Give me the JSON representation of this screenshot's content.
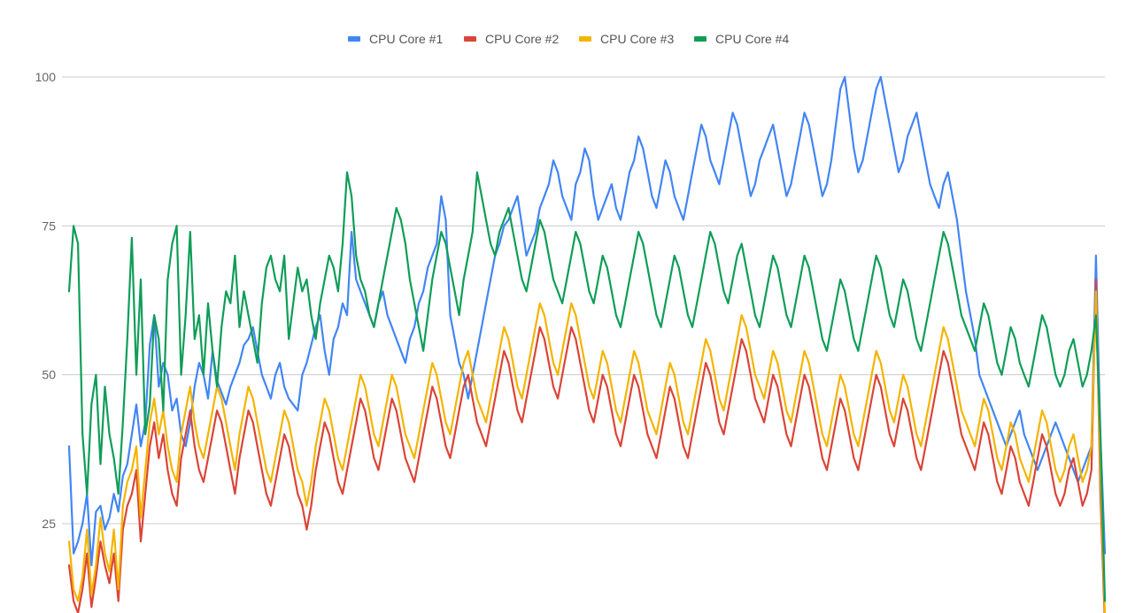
{
  "chart_data": {
    "type": "line",
    "title": "",
    "xlabel": "",
    "ylabel": "",
    "ylim": [
      10,
      100
    ],
    "yticks": [
      25,
      50,
      75,
      100
    ],
    "grid": true,
    "legend_position": "top-center",
    "series": [
      {
        "name": "CPU Core #1",
        "color": "#4285F4",
        "values": [
          38,
          20,
          22,
          25,
          30,
          18,
          27,
          28,
          24,
          26,
          30,
          27,
          33,
          35,
          40,
          45,
          38,
          42,
          55,
          60,
          48,
          52,
          50,
          44,
          46,
          40,
          38,
          42,
          48,
          52,
          50,
          46,
          54,
          49,
          47,
          45,
          48,
          50,
          52,
          55,
          56,
          58,
          54,
          50,
          48,
          46,
          50,
          52,
          48,
          46,
          45,
          44,
          50,
          52,
          55,
          58,
          60,
          54,
          50,
          56,
          58,
          62,
          60,
          74,
          66,
          64,
          62,
          60,
          58,
          62,
          64,
          60,
          58,
          56,
          54,
          52,
          56,
          58,
          62,
          64,
          68,
          70,
          72,
          80,
          76,
          60,
          56,
          52,
          50,
          46,
          50,
          54,
          58,
          62,
          66,
          70,
          72,
          75,
          76,
          78,
          80,
          75,
          70,
          72,
          74,
          78,
          80,
          82,
          86,
          84,
          80,
          78,
          76,
          82,
          84,
          88,
          86,
          80,
          76,
          78,
          80,
          82,
          78,
          76,
          80,
          84,
          86,
          90,
          88,
          84,
          80,
          78,
          82,
          86,
          84,
          80,
          78,
          76,
          80,
          84,
          88,
          92,
          90,
          86,
          84,
          82,
          86,
          90,
          94,
          92,
          88,
          84,
          80,
          82,
          86,
          88,
          90,
          92,
          88,
          84,
          80,
          82,
          86,
          90,
          94,
          92,
          88,
          84,
          80,
          82,
          86,
          92,
          98,
          100,
          94,
          88,
          84,
          86,
          90,
          94,
          98,
          100,
          96,
          92,
          88,
          84,
          86,
          90,
          92,
          94,
          90,
          86,
          82,
          80,
          78,
          82,
          84,
          80,
          76,
          70,
          64,
          60,
          56,
          50,
          48,
          46,
          44,
          42,
          40,
          38,
          40,
          42,
          44,
          40,
          38,
          36,
          34,
          36,
          38,
          40,
          42,
          40,
          38,
          36,
          34,
          32,
          34,
          36,
          38,
          70,
          40,
          20
        ]
      },
      {
        "name": "CPU Core #2",
        "color": "#DB4437",
        "values": [
          18,
          12,
          10,
          14,
          20,
          11,
          16,
          22,
          18,
          15,
          20,
          12,
          24,
          28,
          30,
          34,
          22,
          30,
          38,
          42,
          36,
          40,
          34,
          30,
          28,
          36,
          40,
          44,
          38,
          34,
          32,
          36,
          40,
          44,
          42,
          38,
          34,
          30,
          36,
          40,
          44,
          42,
          38,
          34,
          30,
          28,
          32,
          36,
          40,
          38,
          34,
          30,
          28,
          24,
          28,
          34,
          38,
          42,
          40,
          36,
          32,
          30,
          34,
          38,
          42,
          46,
          44,
          40,
          36,
          34,
          38,
          42,
          46,
          44,
          40,
          36,
          34,
          32,
          36,
          40,
          44,
          48,
          46,
          42,
          38,
          36,
          40,
          44,
          48,
          50,
          46,
          42,
          40,
          38,
          42,
          46,
          50,
          54,
          52,
          48,
          44,
          42,
          46,
          50,
          54,
          58,
          56,
          52,
          48,
          46,
          50,
          54,
          58,
          56,
          52,
          48,
          44,
          42,
          46,
          50,
          48,
          44,
          40,
          38,
          42,
          46,
          50,
          48,
          44,
          40,
          38,
          36,
          40,
          44,
          48,
          46,
          42,
          38,
          36,
          40,
          44,
          48,
          52,
          50,
          46,
          42,
          40,
          44,
          48,
          52,
          56,
          54,
          50,
          46,
          44,
          42,
          46,
          50,
          48,
          44,
          40,
          38,
          42,
          46,
          50,
          48,
          44,
          40,
          36,
          34,
          38,
          42,
          46,
          44,
          40,
          36,
          34,
          38,
          42,
          46,
          50,
          48,
          44,
          40,
          38,
          42,
          46,
          44,
          40,
          36,
          34,
          38,
          42,
          46,
          50,
          54,
          52,
          48,
          44,
          40,
          38,
          36,
          34,
          38,
          42,
          40,
          36,
          32,
          30,
          34,
          38,
          36,
          32,
          30,
          28,
          32,
          36,
          40,
          38,
          34,
          30,
          28,
          30,
          34,
          36,
          32,
          28,
          30,
          34,
          66,
          30,
          8
        ]
      },
      {
        "name": "CPU Core #3",
        "color": "#F4B400",
        "values": [
          22,
          14,
          12,
          16,
          24,
          13,
          18,
          26,
          20,
          17,
          24,
          14,
          28,
          32,
          34,
          38,
          26,
          34,
          42,
          46,
          40,
          44,
          38,
          34,
          32,
          40,
          44,
          48,
          42,
          38,
          36,
          40,
          44,
          48,
          46,
          42,
          38,
          34,
          40,
          44,
          48,
          46,
          42,
          38,
          34,
          32,
          36,
          40,
          44,
          42,
          38,
          34,
          32,
          28,
          32,
          38,
          42,
          46,
          44,
          40,
          36,
          34,
          38,
          42,
          46,
          50,
          48,
          44,
          40,
          38,
          42,
          46,
          50,
          48,
          44,
          40,
          38,
          36,
          40,
          44,
          48,
          52,
          50,
          46,
          42,
          40,
          44,
          48,
          52,
          54,
          50,
          46,
          44,
          42,
          46,
          50,
          54,
          58,
          56,
          52,
          48,
          46,
          50,
          54,
          58,
          62,
          60,
          56,
          52,
          50,
          54,
          58,
          62,
          60,
          56,
          52,
          48,
          46,
          50,
          54,
          52,
          48,
          44,
          42,
          46,
          50,
          54,
          52,
          48,
          44,
          42,
          40,
          44,
          48,
          52,
          50,
          46,
          42,
          40,
          44,
          48,
          52,
          56,
          54,
          50,
          46,
          44,
          48,
          52,
          56,
          60,
          58,
          54,
          50,
          48,
          46,
          50,
          54,
          52,
          48,
          44,
          42,
          46,
          50,
          54,
          52,
          48,
          44,
          40,
          38,
          42,
          46,
          50,
          48,
          44,
          40,
          38,
          42,
          46,
          50,
          54,
          52,
          48,
          44,
          42,
          46,
          50,
          48,
          44,
          40,
          38,
          42,
          46,
          50,
          54,
          58,
          56,
          52,
          48,
          44,
          42,
          40,
          38,
          42,
          46,
          44,
          40,
          36,
          34,
          38,
          42,
          40,
          36,
          34,
          32,
          36,
          40,
          44,
          42,
          38,
          34,
          32,
          34,
          38,
          40,
          36,
          32,
          34,
          38,
          64,
          34,
          10
        ]
      },
      {
        "name": "CPU Core #4",
        "color": "#0F9D58",
        "values": [
          64,
          75,
          72,
          40,
          30,
          45,
          50,
          35,
          48,
          40,
          36,
          30,
          42,
          56,
          73,
          50,
          66,
          40,
          45,
          60,
          56,
          44,
          66,
          72,
          75,
          50,
          60,
          74,
          56,
          60,
          50,
          62,
          54,
          48,
          58,
          64,
          62,
          70,
          58,
          64,
          60,
          56,
          52,
          62,
          68,
          70,
          66,
          64,
          70,
          56,
          62,
          68,
          64,
          66,
          60,
          56,
          62,
          66,
          70,
          68,
          64,
          72,
          84,
          80,
          70,
          66,
          64,
          60,
          58,
          62,
          66,
          70,
          74,
          78,
          76,
          72,
          66,
          62,
          58,
          54,
          60,
          66,
          70,
          74,
          72,
          68,
          64,
          60,
          66,
          70,
          74,
          84,
          80,
          76,
          72,
          70,
          74,
          76,
          78,
          74,
          70,
          66,
          64,
          68,
          72,
          76,
          74,
          70,
          66,
          64,
          62,
          66,
          70,
          74,
          72,
          68,
          64,
          62,
          66,
          70,
          68,
          64,
          60,
          58,
          62,
          66,
          70,
          74,
          72,
          68,
          64,
          60,
          58,
          62,
          66,
          70,
          68,
          64,
          60,
          58,
          62,
          66,
          70,
          74,
          72,
          68,
          64,
          62,
          66,
          70,
          72,
          68,
          64,
          60,
          58,
          62,
          66,
          70,
          68,
          64,
          60,
          58,
          62,
          66,
          70,
          68,
          64,
          60,
          56,
          54,
          58,
          62,
          66,
          64,
          60,
          56,
          54,
          58,
          62,
          66,
          70,
          68,
          64,
          60,
          58,
          62,
          66,
          64,
          60,
          56,
          54,
          58,
          62,
          66,
          70,
          74,
          72,
          68,
          64,
          60,
          58,
          56,
          54,
          58,
          62,
          60,
          56,
          52,
          50,
          54,
          58,
          56,
          52,
          50,
          48,
          52,
          56,
          60,
          58,
          54,
          50,
          48,
          50,
          54,
          56,
          52,
          48,
          50,
          54,
          60,
          40,
          12
        ]
      }
    ]
  }
}
